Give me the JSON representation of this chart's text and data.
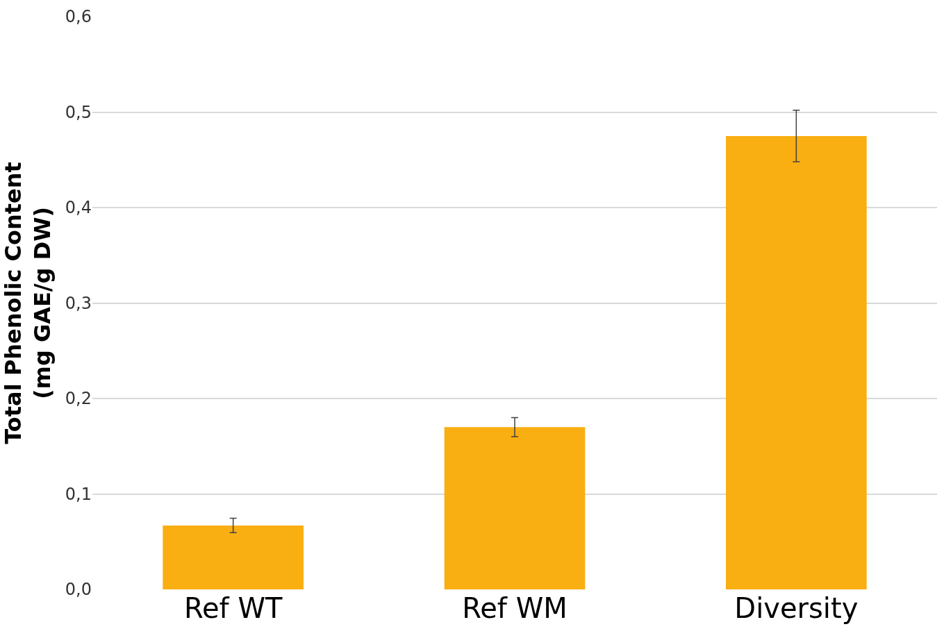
{
  "chart_data": {
    "type": "bar",
    "ylabel": "Total Phenolic Content\n(mg GAE/g DW)",
    "categories": [
      "Ref WT",
      "Ref WM",
      "Diversity"
    ],
    "values": [
      0.067,
      0.17,
      0.475
    ],
    "errors": [
      0.0075,
      0.01,
      0.027
    ],
    "color": "#f9ae12",
    "ylim": [
      0,
      0.6
    ],
    "yticks": [
      {
        "value": 0,
        "label": "0,0"
      },
      {
        "value": 0.1,
        "label": "0,1"
      },
      {
        "value": 0.2,
        "label": "0,2"
      },
      {
        "value": 0.3,
        "label": "0,3"
      },
      {
        "value": 0.4,
        "label": "0,4"
      },
      {
        "value": 0.5,
        "label": "0,5"
      },
      {
        "value": 0.6,
        "label": "0,6"
      }
    ],
    "grid": "y"
  }
}
